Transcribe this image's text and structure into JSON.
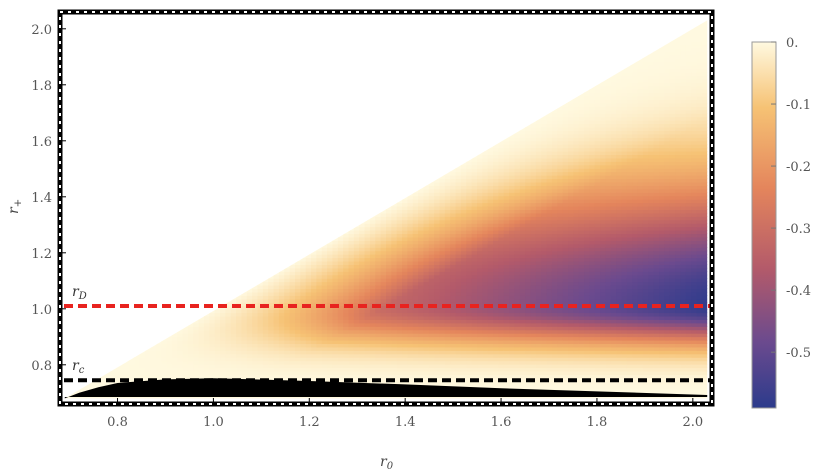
{
  "chart_data": {
    "type": "heatmap",
    "title": "",
    "xlabel": "r",
    "xlabel_sub": "0",
    "ylabel": "r",
    "ylabel_sub": "+",
    "xlim": [
      0.68,
      2.04
    ],
    "ylim": [
      0.66,
      2.06
    ],
    "x_ticks": [
      0.8,
      1.0,
      1.2,
      1.4,
      1.6,
      1.8,
      2.0
    ],
    "x_tick_labels": [
      "0.8",
      "1.0",
      "1.2",
      "1.4",
      "1.6",
      "1.8",
      "2.0"
    ],
    "y_ticks": [
      0.8,
      1.0,
      1.2,
      1.4,
      1.6,
      1.8,
      2.0
    ],
    "y_tick_labels": [
      "0.8",
      "1.0",
      "1.2",
      "1.4",
      "1.6",
      "1.8",
      "2.0"
    ],
    "region": "r+ <= r0 (triangular domain)",
    "colorbar": {
      "range": [
        -0.59,
        0.0
      ],
      "ticks": [
        0.0,
        -0.1,
        -0.2,
        -0.3,
        -0.4,
        -0.5
      ],
      "tick_labels": [
        "0.",
        "-0.1",
        "-0.2",
        "-0.3",
        "-0.4",
        "-0.5"
      ],
      "colors_low_to_high": [
        "#2c3b8c",
        "#6b4a8e",
        "#b35a6a",
        "#e4855c",
        "#f6c274",
        "#fff9e0"
      ]
    },
    "horizontal_lines": [
      {
        "label": "r",
        "label_sub": "D",
        "y": 1.01,
        "color": "#e8231f",
        "style": "dashed"
      },
      {
        "label": "r",
        "label_sub": "c",
        "y": 0.745,
        "color": "#000000",
        "style": "dashed"
      }
    ],
    "black_region": {
      "description": "excluded region above r+ = r0 floor",
      "top_boundary": [
        [
          0.69,
          0.68
        ],
        [
          0.72,
          0.7
        ],
        [
          0.76,
          0.72
        ],
        [
          0.8,
          0.735
        ],
        [
          0.9,
          0.748
        ],
        [
          1.0,
          0.752
        ],
        [
          1.2,
          0.742
        ],
        [
          1.4,
          0.73
        ],
        [
          1.6,
          0.716
        ],
        [
          1.8,
          0.705
        ],
        [
          2.03,
          0.692
        ]
      ],
      "bottom_y": 0.685
    },
    "field_profile": {
      "description": "value vs r+ along far right edge (r0 = 2.03)",
      "r_plus": [
        0.7,
        0.76,
        0.84,
        0.92,
        1.01,
        1.1,
        1.25,
        1.4,
        1.6,
        1.8,
        2.03
      ],
      "value": [
        -0.02,
        -0.12,
        -0.3,
        -0.48,
        -0.58,
        -0.52,
        -0.4,
        -0.28,
        -0.15,
        -0.06,
        0.0
      ]
    }
  }
}
